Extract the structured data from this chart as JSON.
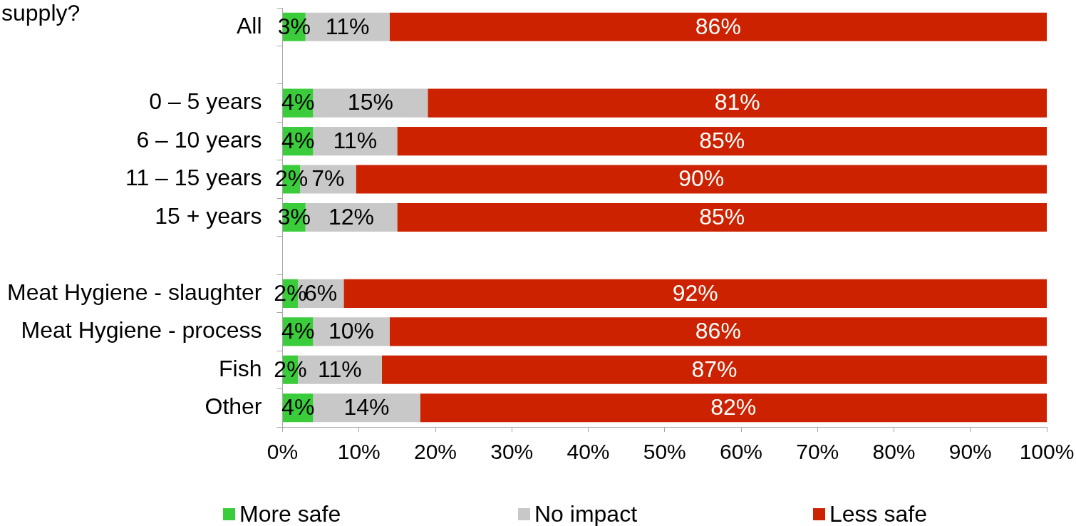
{
  "chart_data": {
    "type": "bar",
    "orientation": "horizontal",
    "stacked": true,
    "title": "supply?",
    "categories": [
      "All",
      null,
      "0 – 5 years",
      "6 – 10 years",
      "11 – 15 years",
      "15 + years",
      null,
      "Meat Hygiene - slaughter",
      "Meat Hygiene - process",
      "Fish",
      "Other"
    ],
    "series": [
      {
        "name": "More safe",
        "color": "#3acc3a",
        "values": [
          3,
          null,
          4,
          4,
          2.3,
          3,
          null,
          2,
          4,
          2,
          4
        ],
        "value_labels": [
          "3%",
          null,
          "4%",
          "4%",
          "2%",
          "3%",
          null,
          "2%",
          "4%",
          "2%",
          "4%"
        ]
      },
      {
        "name": "No impact",
        "color": "#c8c8c8",
        "values": [
          11,
          null,
          15,
          11,
          7.3,
          12,
          null,
          6,
          10,
          11,
          14
        ],
        "value_labels": [
          "11%",
          null,
          "15%",
          "11%",
          "7%",
          "12%",
          null,
          "6%",
          "10%",
          "11%",
          "14%"
        ]
      },
      {
        "name": "Less safe",
        "color": "#cc2200",
        "values": [
          86,
          null,
          81,
          85,
          90.4,
          85,
          null,
          92,
          86,
          87,
          82
        ],
        "value_labels": [
          "86%",
          null,
          "81%",
          "85%",
          "90%",
          "85%",
          null,
          "92%",
          "86%",
          "87%",
          "82%"
        ]
      }
    ],
    "xlim": [
      0,
      100
    ],
    "xticks": [
      {
        "value": 0,
        "label": "0%"
      },
      {
        "value": 10,
        "label": "10%"
      },
      {
        "value": 20,
        "label": "20%"
      },
      {
        "value": 30,
        "label": "30%"
      },
      {
        "value": 40,
        "label": "40%"
      },
      {
        "value": 50,
        "label": "50%"
      },
      {
        "value": 60,
        "label": "60%"
      },
      {
        "value": 70,
        "label": "70%"
      },
      {
        "value": 80,
        "label": "80%"
      },
      {
        "value": 90,
        "label": "90%"
      },
      {
        "value": 100,
        "label": "100%"
      }
    ],
    "legend": "bottom"
  }
}
